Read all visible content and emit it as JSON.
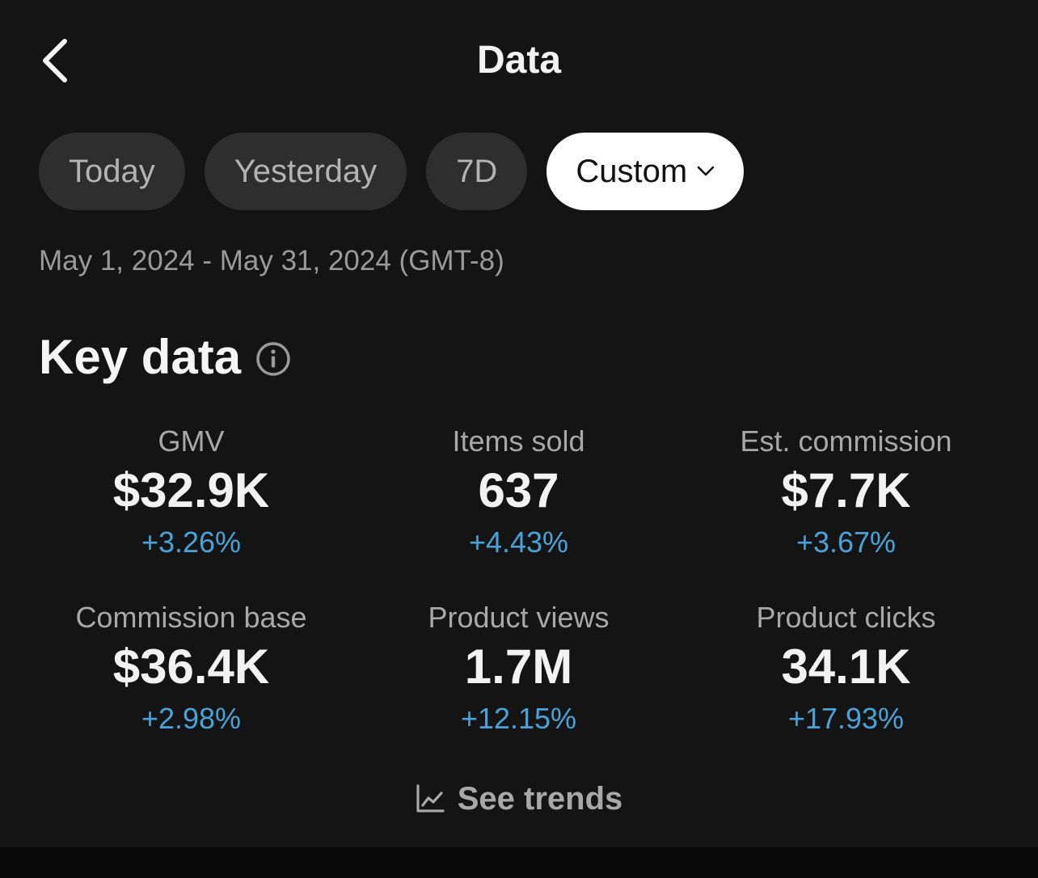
{
  "header": {
    "title": "Data",
    "back_icon": "chevron-left-icon"
  },
  "filters": {
    "items": [
      {
        "label": "Today",
        "active": false
      },
      {
        "label": "Yesterday",
        "active": false
      },
      {
        "label": "7D",
        "active": false
      },
      {
        "label": "Custom",
        "active": true,
        "icon": "chevron-down-icon"
      }
    ]
  },
  "date_range": "May 1, 2024 - May 31, 2024 (GMT-8)",
  "key_data": {
    "title": "Key data",
    "info_icon": "info-icon",
    "metrics": [
      {
        "label": "GMV",
        "value": "$32.9K",
        "change": "+3.26%"
      },
      {
        "label": "Items sold",
        "value": "637",
        "change": "+4.43%"
      },
      {
        "label": "Est. commission",
        "value": "$7.7K",
        "change": "+3.67%"
      },
      {
        "label": "Commission base",
        "value": "$36.4K",
        "change": "+2.98%"
      },
      {
        "label": "Product views",
        "value": "1.7M",
        "change": "+12.15%"
      },
      {
        "label": "Product clicks",
        "value": "34.1K",
        "change": "+17.93%"
      }
    ],
    "trends_label": "See trends",
    "trends_icon": "line-chart-icon"
  },
  "colors": {
    "background": "#141414",
    "chip_bg": "#2e2e2e",
    "chip_active_bg": "#ffffff",
    "positive_change": "#4aa3d8"
  }
}
